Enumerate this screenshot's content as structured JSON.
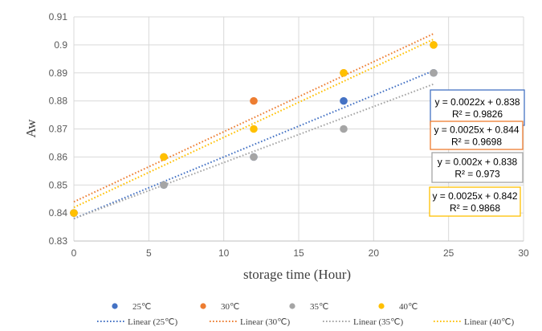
{
  "chart_data": {
    "type": "scatter",
    "xlabel": "storage time (Hour)",
    "ylabel": "Aw",
    "xlim": [
      0,
      30
    ],
    "ylim": [
      0.83,
      0.91
    ],
    "xticks": [
      "0",
      "5",
      "10",
      "15",
      "20",
      "25",
      "30"
    ],
    "yticks": [
      "0.83",
      "0.84",
      "0.85",
      "0.86",
      "0.87",
      "0.88",
      "0.89",
      "0.9",
      "0.91"
    ],
    "grid": "horizontal",
    "legend_position": "bottom",
    "series": [
      {
        "name": "25℃",
        "color": "#4472C4",
        "x": [
          0,
          6,
          12,
          18,
          24
        ],
        "y": [
          0.84,
          0.85,
          0.86,
          0.88,
          0.89
        ],
        "trendline": {
          "name": "Linear (25℃)",
          "slope": 0.0022,
          "intercept": 0.838,
          "equation": "y = 0.0022x + 0.838",
          "r2": "R² = 0.9826"
        }
      },
      {
        "name": "30℃",
        "color": "#ED7D31",
        "x": [
          0,
          6,
          12,
          18,
          24
        ],
        "y": [
          0.84,
          0.86,
          0.88,
          0.89,
          0.9
        ],
        "trendline": {
          "name": "Linear (30℃)",
          "slope": 0.0025,
          "intercept": 0.844,
          "equation": "y = 0.0025x + 0.844",
          "r2": "R² = 0.9698"
        }
      },
      {
        "name": "35℃",
        "color": "#A5A5A5",
        "x": [
          0,
          6,
          12,
          18,
          24
        ],
        "y": [
          0.84,
          0.85,
          0.86,
          0.87,
          0.89
        ],
        "trendline": {
          "name": "Linear (35℃)",
          "slope": 0.002,
          "intercept": 0.838,
          "equation": "y = 0.002x + 0.838",
          "r2": "R² = 0.973"
        }
      },
      {
        "name": "40℃",
        "color": "#FFC000",
        "x": [
          0,
          6,
          12,
          18,
          24
        ],
        "y": [
          0.84,
          0.86,
          0.87,
          0.89,
          0.9
        ],
        "trendline": {
          "name": "Linear (40℃)",
          "slope": 0.0025,
          "intercept": 0.842,
          "equation": "y = 0.0025x + 0.842",
          "r2": "R² = 0.9868"
        }
      }
    ]
  }
}
